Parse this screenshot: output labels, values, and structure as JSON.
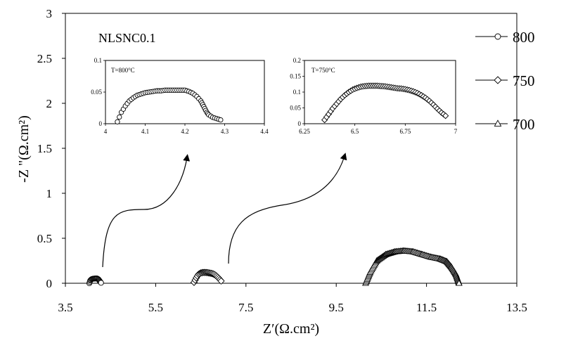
{
  "chart_data": {
    "type": "scatter",
    "title": "",
    "tag": "NLSNC0.1",
    "xlabel": "Z′(Ω.cm²)",
    "ylabel": "-Z \"(Ω.cm²)",
    "xlim": [
      3.5,
      13.5
    ],
    "ylim": [
      0,
      3
    ],
    "x_ticks": [
      "3.5",
      "5.5",
      "7.5",
      "9.5",
      "11.5",
      "13.5"
    ],
    "y_ticks": [
      "0",
      "0.5",
      "1",
      "1.5",
      "2",
      "2.5",
      "3"
    ],
    "grid": false,
    "legend_position": "right",
    "series": [
      {
        "name": "800",
        "marker": "circle",
        "x": [
          4.03,
          4.05,
          4.08,
          4.11,
          4.14,
          4.17,
          4.2,
          4.23,
          4.25,
          4.27,
          4.29
        ],
        "y": [
          0.0,
          0.03,
          0.045,
          0.05,
          0.052,
          0.053,
          0.053,
          0.045,
          0.032,
          0.018,
          0.005
        ]
      },
      {
        "name": "750",
        "marker": "diamond",
        "x": [
          6.35,
          6.4,
          6.45,
          6.5,
          6.55,
          6.6,
          6.65,
          6.7,
          6.75,
          6.8,
          6.85,
          6.9,
          6.95
        ],
        "y": [
          0.01,
          0.06,
          0.1,
          0.115,
          0.12,
          0.12,
          0.118,
          0.113,
          0.108,
          0.098,
          0.08,
          0.055,
          0.025
        ]
      },
      {
        "name": "700",
        "marker": "triangle",
        "x": [
          10.15,
          10.25,
          10.4,
          10.6,
          10.8,
          11.0,
          11.2,
          11.4,
          11.6,
          11.8,
          11.95,
          12.05,
          12.15,
          12.22
        ],
        "y": [
          0.0,
          0.12,
          0.25,
          0.32,
          0.35,
          0.36,
          0.35,
          0.32,
          0.29,
          0.27,
          0.24,
          0.18,
          0.1,
          0.0
        ]
      }
    ],
    "insets": [
      {
        "label": "T=800°C",
        "xlim": [
          4,
          4.4
        ],
        "ylim": [
          0,
          0.1
        ],
        "x_ticks": [
          "4",
          "4.1",
          "4.2",
          "4.3",
          "4.4"
        ],
        "y_ticks": [
          "0",
          "0.05",
          "0.1"
        ],
        "marker": "circle",
        "x": [
          4.03,
          4.04,
          4.05,
          4.06,
          4.07,
          4.08,
          4.09,
          4.1,
          4.11,
          4.12,
          4.13,
          4.14,
          4.15,
          4.16,
          4.17,
          4.18,
          4.19,
          4.2,
          4.21,
          4.22,
          4.23,
          4.24,
          4.245,
          4.25,
          4.255,
          4.26,
          4.27,
          4.28,
          4.29
        ],
        "y": [
          0.003,
          0.018,
          0.028,
          0.036,
          0.041,
          0.045,
          0.047,
          0.049,
          0.05,
          0.051,
          0.052,
          0.052,
          0.053,
          0.053,
          0.053,
          0.053,
          0.053,
          0.053,
          0.051,
          0.048,
          0.043,
          0.036,
          0.03,
          0.024,
          0.018,
          0.014,
          0.01,
          0.008,
          0.006
        ]
      },
      {
        "label": "T=750°C",
        "xlim": [
          6.25,
          7
        ],
        "ylim": [
          0,
          0.2
        ],
        "x_ticks": [
          "6.25",
          "6.5",
          "6.75",
          "7"
        ],
        "y_ticks": [
          "0",
          "0.05",
          "0.1",
          "0.15",
          "0.2"
        ],
        "marker": "diamond",
        "x": [
          6.35,
          6.37,
          6.39,
          6.41,
          6.43,
          6.45,
          6.47,
          6.49,
          6.51,
          6.53,
          6.55,
          6.57,
          6.59,
          6.61,
          6.63,
          6.65,
          6.67,
          6.69,
          6.71,
          6.73,
          6.75,
          6.77,
          6.79,
          6.81,
          6.83,
          6.85,
          6.87,
          6.89,
          6.91,
          6.93,
          6.95
        ],
        "y": [
          0.012,
          0.03,
          0.048,
          0.063,
          0.078,
          0.09,
          0.1,
          0.108,
          0.113,
          0.117,
          0.119,
          0.12,
          0.12,
          0.12,
          0.119,
          0.118,
          0.116,
          0.114,
          0.112,
          0.111,
          0.109,
          0.106,
          0.102,
          0.097,
          0.09,
          0.082,
          0.072,
          0.06,
          0.047,
          0.035,
          0.025
        ]
      }
    ]
  }
}
